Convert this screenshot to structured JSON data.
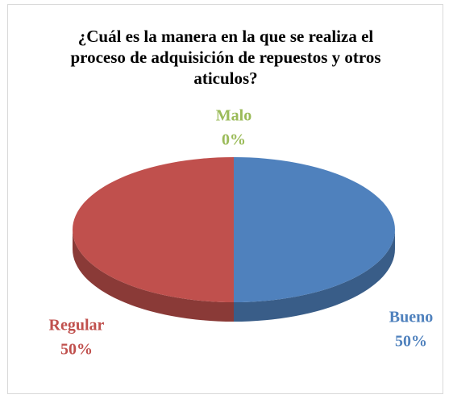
{
  "chart_data": {
    "type": "pie",
    "title": "¿Cuál es la manera en la que se realiza el proceso de adquisición de repuestos y otros aticulos?",
    "categories": [
      "Bueno",
      "Malo",
      "Regular"
    ],
    "values": [
      50,
      0,
      50
    ],
    "value_labels": [
      "50%",
      "0%",
      "50%"
    ],
    "colors": [
      "#4f81bd",
      "#9bbb59",
      "#c0504d"
    ]
  }
}
